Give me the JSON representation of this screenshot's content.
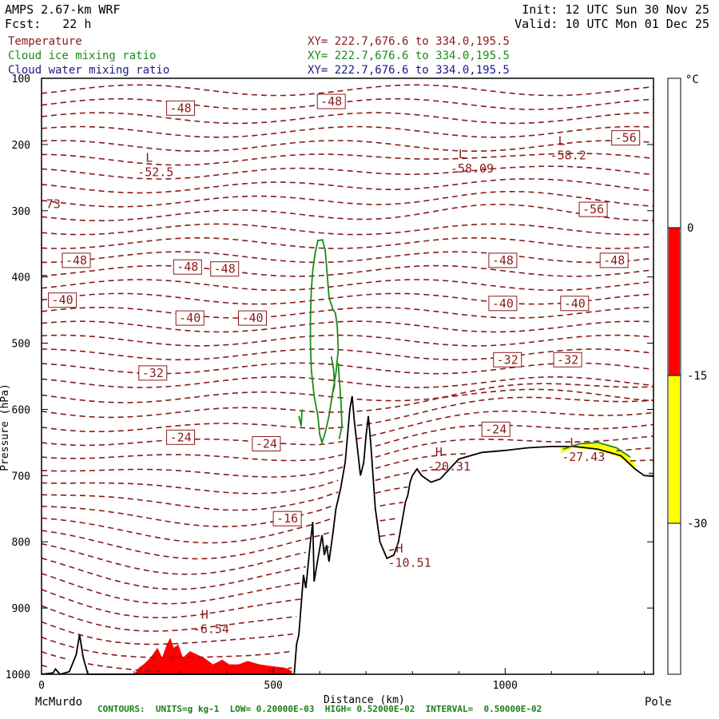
{
  "header": {
    "model": "AMPS 2.67-km WRF",
    "forecast": "Fcst:   22 h",
    "init": "Init: 12 UTC Sun 30 Nov 25",
    "valid": "Valid: 10 UTC Mon 01 Dec 25"
  },
  "legend_lines": [
    {
      "name": "Temperature",
      "xy": "XY= 222.7,676.6 to 334.0,195.5",
      "color": "#8b1a1a"
    },
    {
      "name": "Cloud ice mixing ratio",
      "xy": "XY= 222.7,676.6 to 334.0,195.5",
      "color": "#1a8b1a"
    },
    {
      "name": "Cloud water mixing ratio",
      "xy": "XY= 222.7,676.6 to 334.0,195.5",
      "color": "#1a1a8b"
    }
  ],
  "footer": "CONTOURS:  UNITS=g kg-1  LOW= 0.20000E-03  HIGH= 0.52000E-02  INTERVAL=  0.50000E-02",
  "chart_data": {
    "type": "cross-section",
    "ylabel": "Pressure (hPa)",
    "xlabel": "Distance (km)",
    "x_endpoints": [
      "McMurdo",
      "Pole"
    ],
    "xlim": [
      0,
      1320
    ],
    "ylim": [
      1000,
      100
    ],
    "x_ticks": [
      0,
      500,
      1000
    ],
    "y_ticks": [
      100,
      200,
      300,
      400,
      500,
      600,
      700,
      800,
      900,
      1000
    ],
    "colorbar": {
      "unit": "°C",
      "levels": [
        0,
        -15,
        -30
      ],
      "bands": [
        {
          "from": -15,
          "to": 0,
          "color": "#ff0000"
        },
        {
          "from": -30,
          "to": -15,
          "color": "#ffff00"
        }
      ]
    },
    "contour_labels": [
      {
        "text": "-48",
        "x": 300,
        "p": 145
      },
      {
        "text": "-48",
        "x": 625,
        "p": 135
      },
      {
        "text": "-56",
        "x": 1260,
        "p": 190
      },
      {
        "text": "-56",
        "x": 1190,
        "p": 298
      },
      {
        "text": "-48",
        "x": 75,
        "p": 375
      },
      {
        "text": "-48",
        "x": 315,
        "p": 385
      },
      {
        "text": "-48",
        "x": 395,
        "p": 388
      },
      {
        "text": "-48",
        "x": 995,
        "p": 375
      },
      {
        "text": "-48",
        "x": 1235,
        "p": 375
      },
      {
        "text": "-40",
        "x": 45,
        "p": 435
      },
      {
        "text": "-40",
        "x": 320,
        "p": 462
      },
      {
        "text": "-40",
        "x": 455,
        "p": 462
      },
      {
        "text": "-40",
        "x": 995,
        "p": 440
      },
      {
        "text": "-40",
        "x": 1150,
        "p": 440
      },
      {
        "text": "-32",
        "x": 240,
        "p": 545
      },
      {
        "text": "-32",
        "x": 1005,
        "p": 525
      },
      {
        "text": "-32",
        "x": 1135,
        "p": 525
      },
      {
        "text": "-24",
        "x": 300,
        "p": 642
      },
      {
        "text": "-24",
        "x": 485,
        "p": 652
      },
      {
        "text": "-24",
        "x": 980,
        "p": 630
      },
      {
        "text": "-16",
        "x": 530,
        "p": 765
      }
    ],
    "extrema": [
      {
        "kind": "L",
        "value": "-52.5",
        "x": 245,
        "p": 250
      },
      {
        "kind": "L",
        "value": "-58.09",
        "x": 920,
        "p": 245
      },
      {
        "kind": "L",
        "value": "-58.2",
        "x": 1135,
        "p": 225
      },
      {
        "kind": "H",
        "value": "-20.31",
        "x": 870,
        "p": 695
      },
      {
        "kind": "H",
        "value": "-10.51",
        "x": 785,
        "p": 840
      },
      {
        "kind": "H",
        "value": "-6.54",
        "x": 365,
        "p": 940
      },
      {
        "kind": "L",
        "value": "-27.43",
        "x": 1160,
        "p": 680
      }
    ],
    "edge_label": {
      "text": "73",
      "x": 10,
      "p": 290
    },
    "terrain": [
      [
        0,
        1000
      ],
      [
        25,
        998
      ],
      [
        30,
        992
      ],
      [
        40,
        1000
      ],
      [
        60,
        996
      ],
      [
        75,
        970
      ],
      [
        82,
        940
      ],
      [
        90,
        975
      ],
      [
        100,
        1000
      ],
      [
        200,
        1000
      ],
      [
        400,
        1000
      ],
      [
        525,
        1000
      ],
      [
        545,
        1000
      ],
      [
        550,
        955
      ],
      [
        555,
        940
      ],
      [
        560,
        895
      ],
      [
        565,
        850
      ],
      [
        570,
        870
      ],
      [
        575,
        835
      ],
      [
        580,
        800
      ],
      [
        585,
        770
      ],
      [
        588,
        860
      ],
      [
        595,
        830
      ],
      [
        600,
        810
      ],
      [
        605,
        790
      ],
      [
        610,
        820
      ],
      [
        615,
        805
      ],
      [
        620,
        830
      ],
      [
        628,
        790
      ],
      [
        635,
        750
      ],
      [
        645,
        720
      ],
      [
        655,
        680
      ],
      [
        665,
        600
      ],
      [
        670,
        580
      ],
      [
        675,
        620
      ],
      [
        680,
        650
      ],
      [
        688,
        700
      ],
      [
        695,
        680
      ],
      [
        700,
        640
      ],
      [
        705,
        610
      ],
      [
        710,
        650
      ],
      [
        715,
        700
      ],
      [
        720,
        750
      ],
      [
        730,
        800
      ],
      [
        745,
        825
      ],
      [
        760,
        820
      ],
      [
        770,
        800
      ],
      [
        775,
        780
      ],
      [
        780,
        760
      ],
      [
        785,
        740
      ],
      [
        790,
        730
      ],
      [
        795,
        710
      ],
      [
        800,
        700
      ],
      [
        810,
        690
      ],
      [
        820,
        700
      ],
      [
        830,
        705
      ],
      [
        840,
        710
      ],
      [
        860,
        705
      ],
      [
        880,
        690
      ],
      [
        900,
        675
      ],
      [
        950,
        665
      ],
      [
        1000,
        662
      ],
      [
        1050,
        658
      ],
      [
        1100,
        656
      ],
      [
        1150,
        656
      ],
      [
        1200,
        660
      ],
      [
        1250,
        670
      ],
      [
        1280,
        690
      ],
      [
        1300,
        700
      ],
      [
        1320,
        701
      ]
    ],
    "red_fill_top": [
      [
        200,
        1000
      ],
      [
        210,
        990
      ],
      [
        220,
        985
      ],
      [
        235,
        975
      ],
      [
        250,
        960
      ],
      [
        260,
        975
      ],
      [
        270,
        955
      ],
      [
        278,
        945
      ],
      [
        285,
        960
      ],
      [
        295,
        955
      ],
      [
        305,
        975
      ],
      [
        320,
        965
      ],
      [
        335,
        970
      ],
      [
        350,
        975
      ],
      [
        370,
        985
      ],
      [
        390,
        978
      ],
      [
        405,
        985
      ],
      [
        425,
        985
      ],
      [
        445,
        980
      ],
      [
        470,
        985
      ],
      [
        500,
        988
      ],
      [
        525,
        990
      ],
      [
        540,
        995
      ]
    ],
    "yellow_fill_top": [
      [
        1120,
        667
      ],
      [
        1140,
        660
      ],
      [
        1160,
        654
      ],
      [
        1180,
        650
      ],
      [
        1200,
        650
      ],
      [
        1220,
        654
      ],
      [
        1240,
        660
      ],
      [
        1260,
        668
      ],
      [
        1280,
        682
      ]
    ],
    "ice_contours": [
      [
        [
          588,
          580
        ],
        [
          582,
          540
        ],
        [
          580,
          500
        ],
        [
          580,
          460
        ],
        [
          582,
          420
        ],
        [
          585,
          390
        ],
        [
          590,
          365
        ],
        [
          596,
          345
        ],
        [
          606,
          344
        ],
        [
          612,
          360
        ],
        [
          616,
          395
        ],
        [
          620,
          430
        ],
        [
          628,
          448
        ],
        [
          634,
          455
        ],
        [
          638,
          475
        ],
        [
          640,
          510
        ],
        [
          635,
          545
        ],
        [
          628,
          575
        ],
        [
          620,
          610
        ],
        [
          612,
          635
        ],
        [
          605,
          650
        ],
        [
          600,
          638
        ],
        [
          596,
          610
        ],
        [
          588,
          580
        ]
      ],
      [
        [
          640,
          530
        ],
        [
          643,
          560
        ],
        [
          646,
          590
        ],
        [
          648,
          625
        ],
        [
          642,
          645
        ]
      ],
      [
        [
          555,
          610
        ],
        [
          560,
          625
        ],
        [
          562,
          600
        ]
      ],
      [
        [
          625,
          520
        ],
        [
          630,
          540
        ],
        [
          632,
          565
        ],
        [
          628,
          575
        ]
      ],
      [
        [
          1125,
          660
        ],
        [
          1160,
          652
        ],
        [
          1200,
          650
        ],
        [
          1240,
          658
        ],
        [
          1270,
          672
        ]
      ]
    ]
  }
}
